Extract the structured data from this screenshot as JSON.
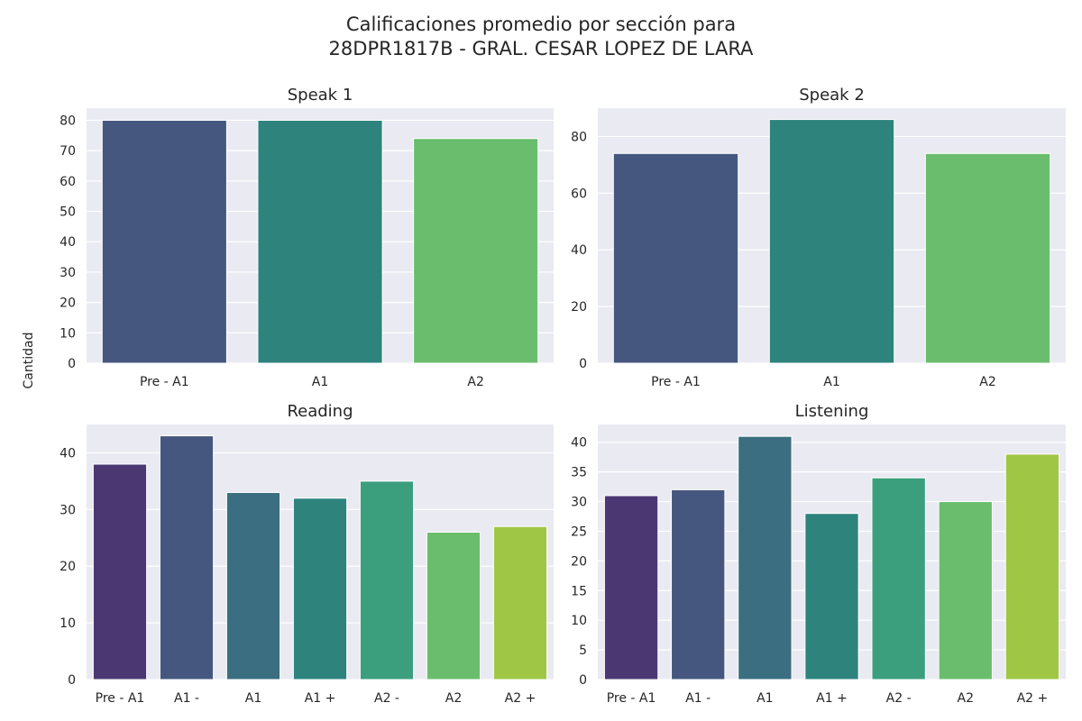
{
  "figure": {
    "title_line1": "Calificaciones promedio por sección para",
    "title_line2": "28DPR1817B - GRAL. CESAR LOPEZ DE LARA",
    "ylabel": "Cantidad"
  },
  "chart_data": [
    {
      "type": "bar",
      "title": "Speak 1",
      "categories": [
        "Pre - A1",
        "A1",
        "A2"
      ],
      "values": [
        80,
        80,
        74
      ],
      "colors": [
        "#46577f",
        "#2e837d",
        "#6bbd6e"
      ],
      "ylim": [
        0,
        84
      ],
      "yticks": [
        0,
        10,
        20,
        30,
        40,
        50,
        60,
        70,
        80
      ],
      "grid": true
    },
    {
      "type": "bar",
      "title": "Speak 2",
      "categories": [
        "Pre - A1",
        "A1",
        "A2"
      ],
      "values": [
        74,
        86,
        74
      ],
      "colors": [
        "#46577f",
        "#2e837d",
        "#6bbd6e"
      ],
      "ylim": [
        0,
        90
      ],
      "yticks": [
        0,
        20,
        40,
        60,
        80
      ],
      "grid": true
    },
    {
      "type": "bar",
      "title": "Reading",
      "categories": [
        "Pre - A1",
        "A1 -",
        "A1",
        "A1 +",
        "A2 -",
        "A2",
        "A2 +"
      ],
      "values": [
        38,
        43,
        33,
        32,
        35,
        26,
        27
      ],
      "colors": [
        "#4b3772",
        "#46577f",
        "#3a6e80",
        "#2e837d",
        "#3b9e7c",
        "#6bbd6e",
        "#a0c646"
      ],
      "ylim": [
        0,
        45
      ],
      "yticks": [
        0,
        10,
        20,
        30,
        40
      ],
      "grid": true
    },
    {
      "type": "bar",
      "title": "Listening",
      "categories": [
        "Pre - A1",
        "A1 -",
        "A1",
        "A1 +",
        "A2 -",
        "A2",
        "A2 +"
      ],
      "values": [
        31,
        32,
        41,
        28,
        34,
        30,
        38
      ],
      "colors": [
        "#4b3772",
        "#46577f",
        "#3a6e80",
        "#2e837d",
        "#3b9e7c",
        "#6bbd6e",
        "#a0c646"
      ],
      "ylim": [
        0,
        43
      ],
      "yticks": [
        0,
        5,
        10,
        15,
        20,
        25,
        30,
        35,
        40
      ],
      "grid": true
    }
  ]
}
